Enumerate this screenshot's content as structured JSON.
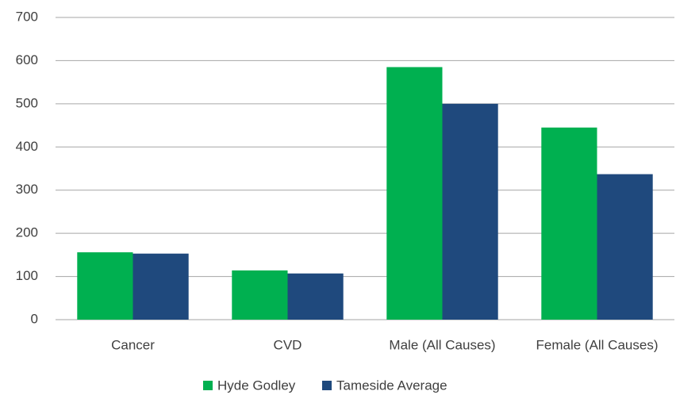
{
  "chart_data": {
    "type": "bar",
    "categories": [
      "Cancer",
      "CVD",
      "Male (All Causes)",
      "Female (All Causes)"
    ],
    "series": [
      {
        "name": "Hyde Godley",
        "color": "#00b050",
        "values": [
          156,
          114,
          585,
          445
        ]
      },
      {
        "name": "Tameside Average",
        "color": "#1f497d",
        "values": [
          153,
          107,
          500,
          337
        ]
      }
    ],
    "ylim": [
      0,
      700
    ],
    "yticks": [
      0,
      100,
      200,
      300,
      400,
      500,
      600,
      700
    ],
    "grid": true,
    "legend": "bottom"
  }
}
